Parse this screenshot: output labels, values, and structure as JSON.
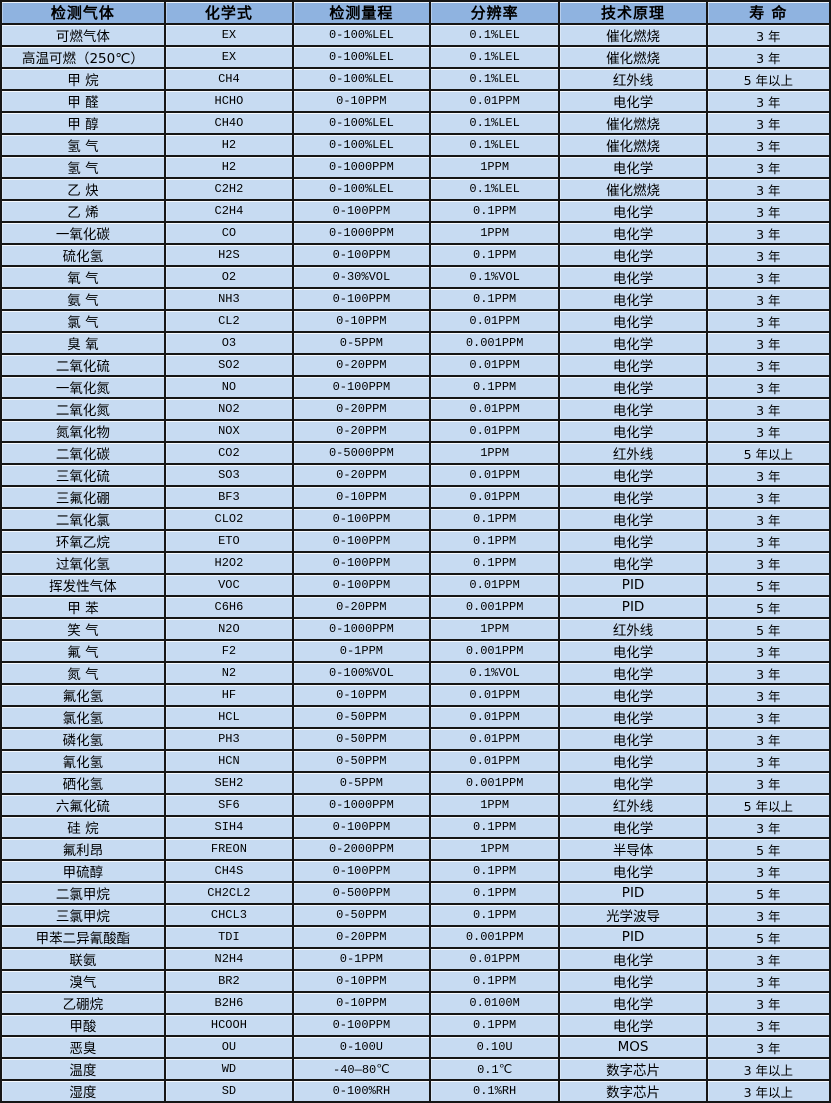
{
  "table": {
    "title": "gas-sensor-specification-table",
    "colors": {
      "header_bg": "#8fb3e0",
      "row_bg": "#c7dbf2",
      "border": "#161616",
      "text": "#000000"
    },
    "columns": [
      {
        "key": "gas",
        "label": "检测气体"
      },
      {
        "key": "formula",
        "label": "化学式"
      },
      {
        "key": "range",
        "label": "检测量程"
      },
      {
        "key": "resolution",
        "label": "分辨率"
      },
      {
        "key": "principle",
        "label": "技术原理"
      },
      {
        "key": "lifespan",
        "label": "寿 命"
      }
    ],
    "rows": [
      {
        "gas": "可燃气体",
        "formula": "EX",
        "range": "0-100%LEL",
        "resolution": "0.1%LEL",
        "principle": "催化燃烧",
        "lifespan": "3 年"
      },
      {
        "gas": "高温可燃（250℃）",
        "formula": "EX",
        "range": "0-100%LEL",
        "resolution": "0.1%LEL",
        "principle": "催化燃烧",
        "lifespan": "3 年"
      },
      {
        "gas": "甲 烷",
        "formula": "CH4",
        "range": "0-100%LEL",
        "resolution": "0.1%LEL",
        "principle": "红外线",
        "lifespan": "5 年以上"
      },
      {
        "gas": "甲 醛",
        "formula": "HCHO",
        "range": "0-10PPM",
        "resolution": "0.01PPM",
        "principle": "电化学",
        "lifespan": "3 年"
      },
      {
        "gas": "甲 醇",
        "formula": "CH4O",
        "range": "0-100%LEL",
        "resolution": "0.1%LEL",
        "principle": "催化燃烧",
        "lifespan": "3 年"
      },
      {
        "gas": "氢 气",
        "formula": "H2",
        "range": "0-100%LEL",
        "resolution": "0.1%LEL",
        "principle": "催化燃烧",
        "lifespan": "3 年"
      },
      {
        "gas": "氢 气",
        "formula": "H2",
        "range": "0-1000PPM",
        "resolution": "1PPM",
        "principle": "电化学",
        "lifespan": "3 年"
      },
      {
        "gas": "乙 炔",
        "formula": "C2H2",
        "range": "0-100%LEL",
        "resolution": "0.1%LEL",
        "principle": "催化燃烧",
        "lifespan": "3 年"
      },
      {
        "gas": "乙 烯",
        "formula": "C2H4",
        "range": "0-100PPM",
        "resolution": "0.1PPM",
        "principle": "电化学",
        "lifespan": "3 年"
      },
      {
        "gas": "一氧化碳",
        "formula": "CO",
        "range": "0-1000PPM",
        "resolution": "1PPM",
        "principle": "电化学",
        "lifespan": "3 年"
      },
      {
        "gas": "硫化氢",
        "formula": "H2S",
        "range": "0-100PPM",
        "resolution": "0.1PPM",
        "principle": "电化学",
        "lifespan": "3 年"
      },
      {
        "gas": "氧 气",
        "formula": "O2",
        "range": "0-30%VOL",
        "resolution": "0.1%VOL",
        "principle": "电化学",
        "lifespan": "3 年"
      },
      {
        "gas": "氨 气",
        "formula": "NH3",
        "range": "0-100PPM",
        "resolution": "0.1PPM",
        "principle": "电化学",
        "lifespan": "3 年"
      },
      {
        "gas": "氯 气",
        "formula": "CL2",
        "range": "0-10PPM",
        "resolution": "0.01PPM",
        "principle": "电化学",
        "lifespan": "3 年"
      },
      {
        "gas": "臭 氧",
        "formula": "O3",
        "range": "0-5PPM",
        "resolution": "0.001PPM",
        "principle": "电化学",
        "lifespan": "3 年"
      },
      {
        "gas": "二氧化硫",
        "formula": "SO2",
        "range": "0-20PPM",
        "resolution": "0.01PPM",
        "principle": "电化学",
        "lifespan": "3 年"
      },
      {
        "gas": "一氧化氮",
        "formula": "NO",
        "range": "0-100PPM",
        "resolution": "0.1PPM",
        "principle": "电化学",
        "lifespan": "3 年"
      },
      {
        "gas": "二氧化氮",
        "formula": "NO2",
        "range": "0-20PPM",
        "resolution": "0.01PPM",
        "principle": "电化学",
        "lifespan": "3 年"
      },
      {
        "gas": "氮氧化物",
        "formula": "NOX",
        "range": "0-20PPM",
        "resolution": "0.01PPM",
        "principle": "电化学",
        "lifespan": "3 年"
      },
      {
        "gas": "二氧化碳",
        "formula": "CO2",
        "range": "0-5000PPM",
        "resolution": "1PPM",
        "principle": "红外线",
        "lifespan": "5 年以上"
      },
      {
        "gas": "三氧化硫",
        "formula": "SO3",
        "range": "0-20PPM",
        "resolution": "0.01PPM",
        "principle": "电化学",
        "lifespan": "3 年"
      },
      {
        "gas": "三氟化硼",
        "formula": "BF3",
        "range": "0-10PPM",
        "resolution": "0.01PPM",
        "principle": "电化学",
        "lifespan": "3 年"
      },
      {
        "gas": "二氧化氯",
        "formula": "CLO2",
        "range": "0-100PPM",
        "resolution": "0.1PPM",
        "principle": "电化学",
        "lifespan": "3 年"
      },
      {
        "gas": "环氧乙烷",
        "formula": "ETO",
        "range": "0-100PPM",
        "resolution": "0.1PPM",
        "principle": "电化学",
        "lifespan": "3 年"
      },
      {
        "gas": "过氧化氢",
        "formula": "H2O2",
        "range": "0-100PPM",
        "resolution": "0.1PPM",
        "principle": "电化学",
        "lifespan": "3 年"
      },
      {
        "gas": "挥发性气体",
        "formula": "VOC",
        "range": "0-100PPM",
        "resolution": "0.01PPM",
        "principle": "PID",
        "lifespan": "5 年"
      },
      {
        "gas": "甲 苯",
        "formula": "C6H6",
        "range": "0-20PPM",
        "resolution": "0.001PPM",
        "principle": "PID",
        "lifespan": "5 年"
      },
      {
        "gas": "笑 气",
        "formula": "N2O",
        "range": "0-1000PPM",
        "resolution": "1PPM",
        "principle": "红外线",
        "lifespan": "5 年"
      },
      {
        "gas": "氟 气",
        "formula": "F2",
        "range": "0-1PPM",
        "resolution": "0.001PPM",
        "principle": "电化学",
        "lifespan": "3 年"
      },
      {
        "gas": "氮 气",
        "formula": "N2",
        "range": "0-100%VOL",
        "resolution": "0.1%VOL",
        "principle": "电化学",
        "lifespan": "3 年"
      },
      {
        "gas": "氟化氢",
        "formula": "HF",
        "range": "0-10PPM",
        "resolution": "0.01PPM",
        "principle": "电化学",
        "lifespan": "3 年"
      },
      {
        "gas": "氯化氢",
        "formula": "HCL",
        "range": "0-50PPM",
        "resolution": "0.01PPM",
        "principle": "电化学",
        "lifespan": "3 年"
      },
      {
        "gas": "磷化氢",
        "formula": "PH3",
        "range": "0-50PPM",
        "resolution": "0.01PPM",
        "principle": "电化学",
        "lifespan": "3 年"
      },
      {
        "gas": "氰化氢",
        "formula": "HCN",
        "range": "0-50PPM",
        "resolution": "0.01PPM",
        "principle": "电化学",
        "lifespan": "3 年"
      },
      {
        "gas": "硒化氢",
        "formula": "SEH2",
        "range": "0-5PPM",
        "resolution": "0.001PPM",
        "principle": "电化学",
        "lifespan": "3 年"
      },
      {
        "gas": "六氟化硫",
        "formula": "SF6",
        "range": "0-1000PPM",
        "resolution": "1PPM",
        "principle": "红外线",
        "lifespan": "5 年以上"
      },
      {
        "gas": "硅 烷",
        "formula": "SIH4",
        "range": "0-100PPM",
        "resolution": "0.1PPM",
        "principle": "电化学",
        "lifespan": "3 年"
      },
      {
        "gas": "氟利昂",
        "formula": "FREON",
        "range": "0-2000PPM",
        "resolution": "1PPM",
        "principle": "半导体",
        "lifespan": "5 年"
      },
      {
        "gas": "甲硫醇",
        "formula": "CH4S",
        "range": "0-100PPM",
        "resolution": "0.1PPM",
        "principle": "电化学",
        "lifespan": "3 年"
      },
      {
        "gas": "二氯甲烷",
        "formula": "CH2CL2",
        "range": "0-500PPM",
        "resolution": "0.1PPM",
        "principle": "PID",
        "lifespan": "5 年"
      },
      {
        "gas": "三氯甲烷",
        "formula": "CHCL3",
        "range": "0-50PPM",
        "resolution": "0.1PPM",
        "principle": "光学波导",
        "lifespan": "3 年"
      },
      {
        "gas": "甲苯二异氰酸酯",
        "formula": "TDI",
        "range": "0-20PPM",
        "resolution": "0.001PPM",
        "principle": "PID",
        "lifespan": "5 年"
      },
      {
        "gas": "联氨",
        "formula": "N2H4",
        "range": "0-1PPM",
        "resolution": "0.01PPM",
        "principle": "电化学",
        "lifespan": "3 年"
      },
      {
        "gas": "溴气",
        "formula": "BR2",
        "range": "0-10PPM",
        "resolution": "0.1PPM",
        "principle": "电化学",
        "lifespan": "3 年"
      },
      {
        "gas": "乙硼烷",
        "formula": "B2H6",
        "range": "0-10PPM",
        "resolution": "0.0100M",
        "principle": "电化学",
        "lifespan": "3 年"
      },
      {
        "gas": "甲酸",
        "formula": "HCOOH",
        "range": "0-100PPM",
        "resolution": "0.1PPM",
        "principle": "电化学",
        "lifespan": "3 年"
      },
      {
        "gas": "恶臭",
        "formula": "OU",
        "range": "0-100U",
        "resolution": "0.10U",
        "principle": "MOS",
        "lifespan": "3 年"
      },
      {
        "gas": "温度",
        "formula": "WD",
        "range": "-40—80℃",
        "resolution": "0.1℃",
        "principle": "数字芯片",
        "lifespan": "3 年以上"
      },
      {
        "gas": "湿度",
        "formula": "SD",
        "range": "0-100%RH",
        "resolution": "0.1%RH",
        "principle": "数字芯片",
        "lifespan": "3 年以上"
      }
    ]
  }
}
